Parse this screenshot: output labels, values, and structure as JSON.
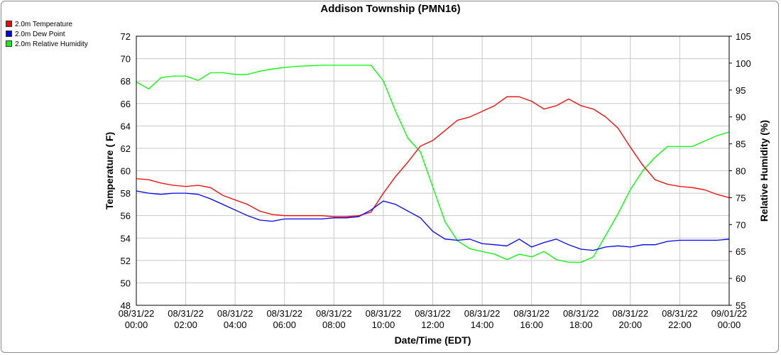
{
  "chart_data": {
    "type": "line",
    "title": "Addison Township (PMN16)",
    "xlabel": "Date/Time (EDT)",
    "ylabel": "Temperature ( F)",
    "y2label": "Relative Humidity (%)",
    "xlim": [
      "08/31/22 00:00",
      "09/01/22 00:00"
    ],
    "ylim": [
      48,
      72
    ],
    "y2lim": [
      55,
      105
    ],
    "grid": true,
    "legend_position": "top-left",
    "x_ticks": [
      {
        "date": "08/31/22",
        "time": "00:00"
      },
      {
        "date": "08/31/22",
        "time": "02:00"
      },
      {
        "date": "08/31/22",
        "time": "04:00"
      },
      {
        "date": "08/31/22",
        "time": "06:00"
      },
      {
        "date": "08/31/22",
        "time": "08:00"
      },
      {
        "date": "08/31/22",
        "time": "10:00"
      },
      {
        "date": "08/31/22",
        "time": "12:00"
      },
      {
        "date": "08/31/22",
        "time": "14:00"
      },
      {
        "date": "08/31/22",
        "time": "16:00"
      },
      {
        "date": "08/31/22",
        "time": "18:00"
      },
      {
        "date": "08/31/22",
        "time": "20:00"
      },
      {
        "date": "08/31/22",
        "time": "22:00"
      },
      {
        "date": "09/01/22",
        "time": "00:00"
      }
    ],
    "y_ticks": [
      48,
      50,
      52,
      54,
      56,
      58,
      60,
      62,
      64,
      66,
      68,
      70,
      72
    ],
    "y2_ticks": [
      55,
      60,
      65,
      70,
      75,
      80,
      85,
      90,
      95,
      100,
      105
    ],
    "x": [
      "08/31/22 00:00",
      "08/31/22 00:30",
      "08/31/22 01:00",
      "08/31/22 01:30",
      "08/31/22 02:00",
      "08/31/22 02:30",
      "08/31/22 03:00",
      "08/31/22 03:30",
      "08/31/22 04:00",
      "08/31/22 04:30",
      "08/31/22 05:00",
      "08/31/22 05:30",
      "08/31/22 06:00",
      "08/31/22 06:30",
      "08/31/22 07:00",
      "08/31/22 07:30",
      "08/31/22 08:00",
      "08/31/22 08:30",
      "08/31/22 09:00",
      "08/31/22 09:30",
      "08/31/22 10:00",
      "08/31/22 10:30",
      "08/31/22 11:00",
      "08/31/22 11:30",
      "08/31/22 12:00",
      "08/31/22 12:30",
      "08/31/22 13:00",
      "08/31/22 13:30",
      "08/31/22 14:00",
      "08/31/22 14:30",
      "08/31/22 15:00",
      "08/31/22 15:30",
      "08/31/22 16:00",
      "08/31/22 16:30",
      "08/31/22 17:00",
      "08/31/22 17:30",
      "08/31/22 18:00",
      "08/31/22 18:30",
      "08/31/22 19:00",
      "08/31/22 19:30",
      "08/31/22 20:00",
      "08/31/22 20:30",
      "08/31/22 21:00",
      "08/31/22 21:30",
      "08/31/22 22:00",
      "08/31/22 22:30",
      "08/31/22 23:00",
      "08/31/22 23:30",
      "09/01/22 00:00"
    ],
    "series": [
      {
        "name": "2.0m Temperature",
        "color": "#ff0000",
        "axis": "left",
        "values": [
          59.3,
          59.2,
          58.9,
          58.7,
          58.6,
          58.7,
          58.5,
          57.8,
          57.4,
          57.0,
          56.4,
          56.1,
          56.0,
          56.0,
          56.0,
          56.0,
          55.9,
          55.9,
          56.0,
          56.3,
          58.0,
          59.5,
          60.8,
          62.2,
          62.7,
          63.6,
          64.5,
          64.8,
          65.3,
          65.8,
          66.6,
          66.6,
          66.2,
          65.5,
          65.8,
          66.4,
          65.8,
          65.5,
          64.8,
          63.8,
          62.1,
          60.5,
          59.2,
          58.8,
          58.6,
          58.5,
          58.3,
          57.9,
          57.6
        ]
      },
      {
        "name": "2.0m Dew Point",
        "color": "#0000ff",
        "axis": "left",
        "values": [
          58.2,
          58.0,
          57.9,
          58.0,
          58.0,
          57.9,
          57.5,
          57.0,
          56.5,
          56.0,
          55.6,
          55.5,
          55.7,
          55.7,
          55.7,
          55.7,
          55.8,
          55.8,
          55.9,
          56.5,
          57.3,
          57.0,
          56.4,
          55.8,
          54.6,
          53.9,
          53.8,
          53.9,
          53.5,
          53.4,
          53.3,
          53.9,
          53.2,
          53.6,
          53.9,
          53.4,
          53.0,
          52.9,
          53.2,
          53.3,
          53.2,
          53.4,
          53.4,
          53.7,
          53.8,
          53.8,
          53.8,
          53.8,
          53.9
        ]
      },
      {
        "name": "2.0m Relative Humidity",
        "color": "#00ff00",
        "axis": "right",
        "values": [
          96.5,
          95.2,
          97.3,
          97.6,
          97.6,
          96.8,
          98.2,
          98.2,
          97.9,
          97.9,
          98.5,
          98.9,
          99.2,
          99.4,
          99.5,
          99.6,
          99.6,
          99.6,
          99.6,
          99.6,
          96.7,
          91.0,
          86.0,
          83.5,
          77.0,
          70.5,
          67.0,
          65.5,
          65.0,
          64.5,
          63.5,
          64.5,
          64.0,
          65.0,
          63.5,
          63.0,
          63.0,
          64.0,
          68.0,
          72.0,
          76.5,
          80.0,
          82.5,
          84.5,
          84.5,
          84.5,
          85.5,
          86.5,
          87.2
        ]
      }
    ]
  }
}
